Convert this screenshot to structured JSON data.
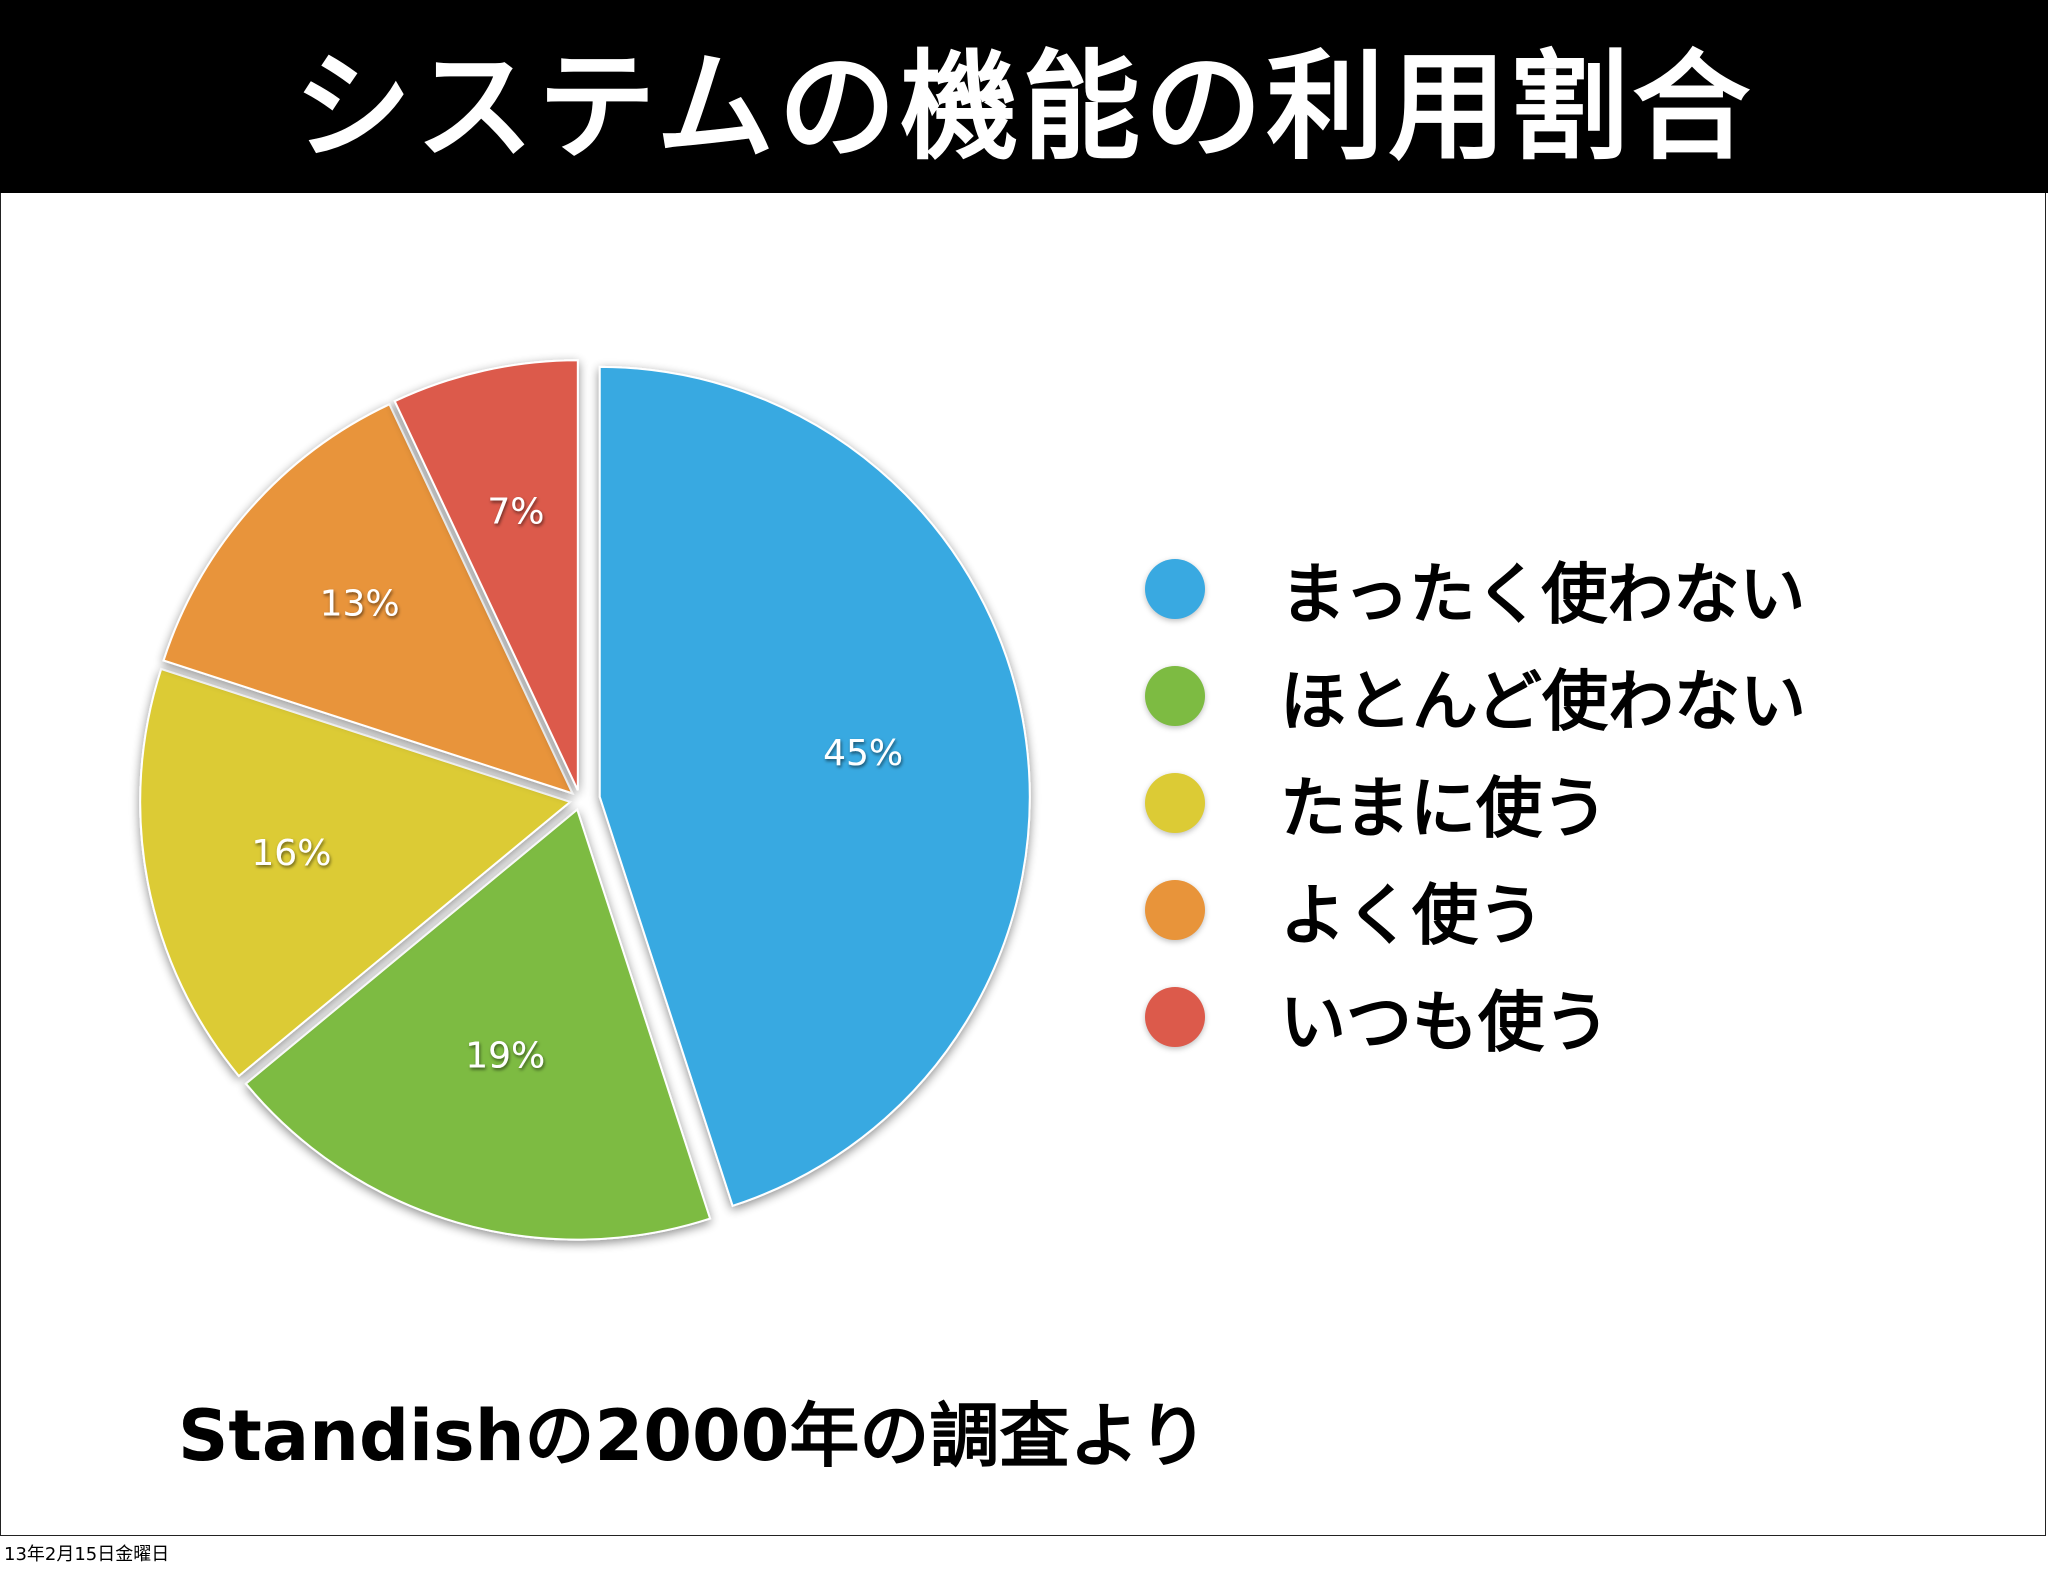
{
  "title": "システムの機能の利用割合",
  "chart_data": {
    "type": "pie",
    "title": "システムの機能の利用割合",
    "slices": [
      {
        "name": "まったく使わない",
        "value": 45,
        "label": "45%",
        "color": "#39a9e1"
      },
      {
        "name": "ほとんど使わない",
        "value": 19,
        "label": "19%",
        "color": "#7dbb42"
      },
      {
        "name": "たまに使う",
        "value": 16,
        "label": "16%",
        "color": "#dccb35"
      },
      {
        "name": "よく使う",
        "value": 13,
        "label": "13%",
        "color": "#e8943a"
      },
      {
        "name": "いつも使う",
        "value": 7,
        "label": "7%",
        "color": "#dc5a4b"
      }
    ],
    "legend_position": "right"
  },
  "legend": [
    {
      "label": "まったく使わない",
      "color": "#39a9e1"
    },
    {
      "label": "ほとんど使わない",
      "color": "#7dbb42"
    },
    {
      "label": "たまに使う",
      "color": "#dccb35"
    },
    {
      "label": "よく使う",
      "color": "#e8943a"
    },
    {
      "label": "いつも使う",
      "color": "#dc5a4b"
    }
  ],
  "source": "Standishの2000年の調査より",
  "date_stamp": "13年2月15日金曜日"
}
